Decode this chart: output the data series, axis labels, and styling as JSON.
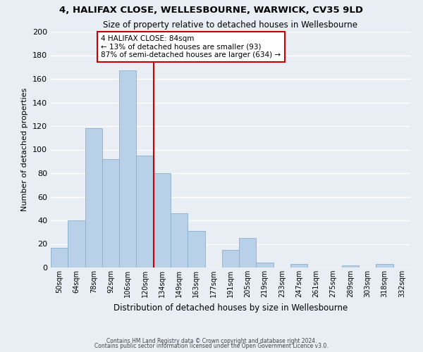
{
  "title": "4, HALIFAX CLOSE, WELLESBOURNE, WARWICK, CV35 9LD",
  "subtitle": "Size of property relative to detached houses in Wellesbourne",
  "xlabel": "Distribution of detached houses by size in Wellesbourne",
  "ylabel": "Number of detached properties",
  "bar_color": "#b8d0e8",
  "bar_edge_color": "#8ab0cc",
  "vline_x": 6,
  "vline_color": "#cc0000",
  "categories": [
    "50sqm",
    "64sqm",
    "78sqm",
    "92sqm",
    "106sqm",
    "120sqm",
    "134sqm",
    "149sqm",
    "163sqm",
    "177sqm",
    "191sqm",
    "205sqm",
    "219sqm",
    "233sqm",
    "247sqm",
    "261sqm",
    "275sqm",
    "289sqm",
    "303sqm",
    "318sqm",
    "332sqm"
  ],
  "values": [
    17,
    40,
    118,
    92,
    167,
    95,
    80,
    46,
    31,
    0,
    15,
    25,
    4,
    0,
    3,
    0,
    0,
    2,
    0,
    3,
    0
  ],
  "ylim": [
    0,
    200
  ],
  "yticks": [
    0,
    20,
    40,
    60,
    80,
    100,
    120,
    140,
    160,
    180,
    200
  ],
  "annotation_title": "4 HALIFAX CLOSE: 84sqm",
  "annotation_line1": "← 13% of detached houses are smaller (93)",
  "annotation_line2": "87% of semi-detached houses are larger (634) →",
  "annotation_box_color": "#ffffff",
  "annotation_box_edge": "#cc0000",
  "footer_line1": "Contains HM Land Registry data © Crown copyright and database right 2024.",
  "footer_line2": "Contains public sector information licensed under the Open Government Licence v3.0.",
  "bg_color": "#e8eef4",
  "plot_bg_color": "#e8eef4",
  "grid_color": "#ffffff"
}
